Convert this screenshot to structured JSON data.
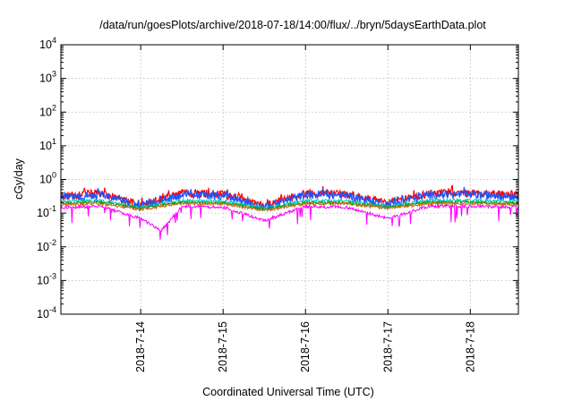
{
  "chart_data": {
    "type": "line",
    "title": "/data/run/goesPlots/archive/2018-07-18/14:00/flux/../bryn/5daysEarthData.plot",
    "xlabel": "Coordinated Universal Time (UTC)",
    "ylabel": "cGy/day",
    "y_scale": "log",
    "ylim": [
      0.0001,
      10000
    ],
    "y_ticks": [
      {
        "value": 0.0001,
        "base": "10",
        "exp": "-4"
      },
      {
        "value": 0.001,
        "base": "10",
        "exp": "-3"
      },
      {
        "value": 0.01,
        "base": "10",
        "exp": "-2"
      },
      {
        "value": 0.1,
        "base": "10",
        "exp": "-1"
      },
      {
        "value": 1,
        "base": "10",
        "exp": "0"
      },
      {
        "value": 10,
        "base": "10",
        "exp": "1"
      },
      {
        "value": 100,
        "base": "10",
        "exp": "2"
      },
      {
        "value": 1000,
        "base": "10",
        "exp": "3"
      },
      {
        "value": 10000,
        "base": "10",
        "exp": "4"
      }
    ],
    "xlim": [
      "2018-07-13 00:45",
      "2018-07-18 14:00"
    ],
    "x_ticks": [
      "2018-7-14",
      "2018-7-15",
      "2018-7-16",
      "2018-7-17",
      "2018-7-18"
    ],
    "grid": true,
    "series": [
      {
        "color": "#ff0000",
        "base_level": 0.33,
        "x": [
          "2018-07-13 01:00",
          "2018-07-13 12:00",
          "2018-07-14 00:00",
          "2018-07-14 12:00",
          "2018-07-15 00:00",
          "2018-07-15 12:00",
          "2018-07-16 00:00",
          "2018-07-16 12:00",
          "2018-07-17 00:00",
          "2018-07-17 12:00",
          "2018-07-18 00:00",
          "2018-07-18 14:00"
        ],
        "values": [
          0.32,
          0.4,
          0.18,
          0.4,
          0.38,
          0.17,
          0.4,
          0.38,
          0.2,
          0.4,
          0.4,
          0.36
        ]
      },
      {
        "color": "#1a56ff",
        "base_level": 0.3,
        "x": [
          "2018-07-13 01:00",
          "2018-07-13 12:00",
          "2018-07-14 00:00",
          "2018-07-14 12:00",
          "2018-07-15 00:00",
          "2018-07-15 12:00",
          "2018-07-16 00:00",
          "2018-07-16 12:00",
          "2018-07-17 00:00",
          "2018-07-17 12:00",
          "2018-07-18 00:00",
          "2018-07-18 14:00"
        ],
        "values": [
          0.29,
          0.36,
          0.16,
          0.36,
          0.34,
          0.15,
          0.36,
          0.34,
          0.18,
          0.36,
          0.36,
          0.32
        ]
      },
      {
        "color": "#00c8c8",
        "base_level": 0.225,
        "x": [
          "2018-07-13 01:00",
          "2018-07-13 12:00",
          "2018-07-14 00:00",
          "2018-07-14 12:00",
          "2018-07-15 00:00",
          "2018-07-15 12:00",
          "2018-07-16 00:00",
          "2018-07-16 12:00",
          "2018-07-17 00:00",
          "2018-07-17 12:00",
          "2018-07-18 00:00",
          "2018-07-18 14:00"
        ],
        "values": [
          0.22,
          0.24,
          0.15,
          0.24,
          0.23,
          0.14,
          0.24,
          0.23,
          0.16,
          0.24,
          0.24,
          0.22
        ]
      },
      {
        "color": "#00a000",
        "base_level": 0.2,
        "x": [
          "2018-07-13 01:00",
          "2018-07-13 12:00",
          "2018-07-14 00:00",
          "2018-07-14 12:00",
          "2018-07-15 00:00",
          "2018-07-15 12:00",
          "2018-07-16 00:00",
          "2018-07-16 12:00",
          "2018-07-17 00:00",
          "2018-07-17 12:00",
          "2018-07-18 00:00",
          "2018-07-18 14:00"
        ],
        "values": [
          0.2,
          0.21,
          0.14,
          0.21,
          0.2,
          0.13,
          0.21,
          0.2,
          0.15,
          0.21,
          0.21,
          0.2
        ]
      },
      {
        "color": "#d2691e",
        "base_level": 0.185,
        "x": [
          "2018-07-13 01:00",
          "2018-07-13 12:00",
          "2018-07-14 00:00",
          "2018-07-14 12:00",
          "2018-07-15 00:00",
          "2018-07-15 12:00",
          "2018-07-16 00:00",
          "2018-07-16 12:00",
          "2018-07-17 00:00",
          "2018-07-17 12:00",
          "2018-07-18 00:00",
          "2018-07-18 14:00"
        ],
        "values": [
          0.18,
          0.19,
          0.13,
          0.19,
          0.19,
          0.12,
          0.19,
          0.19,
          0.14,
          0.19,
          0.19,
          0.18
        ]
      },
      {
        "color": "#ff00ff",
        "base_level": 0.16,
        "x": [
          "2018-07-13 01:00",
          "2018-07-13 12:00",
          "2018-07-14 00:00",
          "2018-07-14 06:00",
          "2018-07-14 12:00",
          "2018-07-15 00:00",
          "2018-07-15 12:00",
          "2018-07-16 00:00",
          "2018-07-16 12:00",
          "2018-07-17 00:00",
          "2018-07-17 12:00",
          "2018-07-18 00:00",
          "2018-07-18 14:00"
        ],
        "values": [
          0.15,
          0.16,
          0.07,
          0.03,
          0.16,
          0.15,
          0.06,
          0.16,
          0.15,
          0.07,
          0.16,
          0.16,
          0.15
        ]
      }
    ]
  }
}
